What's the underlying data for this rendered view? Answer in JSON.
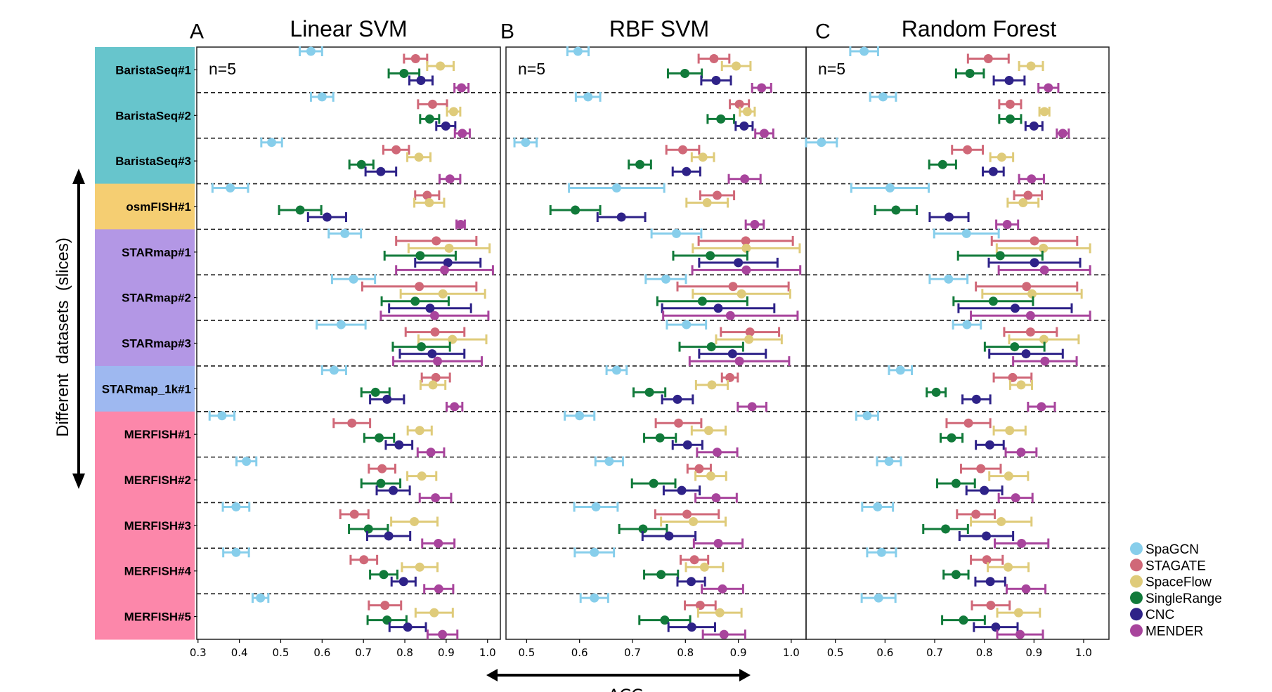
{
  "figure": {
    "ylabel": "Different  datasets  (slices)",
    "xlabel": "ACC",
    "datasets": [
      "BaristaSeq#1",
      "BaristaSeq#2",
      "BaristaSeq#3",
      "osmFISH#1",
      "STARmap#1",
      "STARmap#2",
      "STARmap#3",
      "STARmap_1k#1",
      "MERFISH#1",
      "MERFISH#2",
      "MERFISH#3",
      "MERFISH#4",
      "MERFISH#5"
    ],
    "dataset_band_colors": [
      "#67C5CC",
      "#67C5CC",
      "#67C5CC",
      "#F5CE72",
      "#B397E5",
      "#B397E5",
      "#B397E5",
      "#9EB8F0",
      "#FC87AA",
      "#FC87AA",
      "#FC87AA",
      "#FC87AA",
      "#FC87AA"
    ],
    "legend": [
      {
        "name": "SpaGCN",
        "color": "#87CEEB"
      },
      {
        "name": "STAGATE",
        "color": "#D06878"
      },
      {
        "name": "SpaceFlow",
        "color": "#DFCB7A"
      },
      {
        "name": "SingleRange",
        "color": "#117A3A"
      },
      {
        "name": "CNC",
        "color": "#2E2288"
      },
      {
        "name": "MENDER",
        "color": "#A8449C"
      }
    ],
    "legend_placement": "bottom-right"
  },
  "chart_data": [
    {
      "type": "scatter",
      "panel_letter": "A",
      "title": "Linear SVM",
      "annotation": "n=5",
      "xlim": [
        0.297,
        1.031
      ],
      "xticks": [
        "0.3",
        "0.4",
        "0.5",
        "0.6",
        "0.7",
        "0.8",
        "0.9",
        "1.0"
      ],
      "categories_ref": "figure.datasets",
      "series": [
        {
          "name": "SpaGCN",
          "values": [
            0.573,
            0.6,
            0.478,
            0.378,
            0.655,
            0.676,
            0.646,
            0.629,
            0.358,
            0.417,
            0.392,
            0.392,
            0.451
          ],
          "errors": [
            0.027,
            0.027,
            0.025,
            0.043,
            0.039,
            0.052,
            0.059,
            0.029,
            0.03,
            0.024,
            0.032,
            0.031,
            0.019
          ]
        },
        {
          "name": "STAGATE",
          "values": [
            0.826,
            0.867,
            0.779,
            0.854,
            0.876,
            0.835,
            0.873,
            0.875,
            0.672,
            0.745,
            0.678,
            0.701,
            0.752
          ],
          "errors": [
            0.028,
            0.035,
            0.031,
            0.029,
            0.097,
            0.138,
            0.071,
            0.034,
            0.044,
            0.032,
            0.034,
            0.032,
            0.039
          ]
        },
        {
          "name": "SpaceFlow",
          "values": [
            0.886,
            0.918,
            0.834,
            0.859,
            0.907,
            0.892,
            0.915,
            0.868,
            0.836,
            0.841,
            0.823,
            0.836,
            0.871
          ],
          "errors": [
            0.032,
            0.016,
            0.028,
            0.036,
            0.098,
            0.102,
            0.082,
            0.03,
            0.029,
            0.035,
            0.056,
            0.043,
            0.045
          ]
        },
        {
          "name": "SingleRange",
          "values": [
            0.798,
            0.86,
            0.695,
            0.547,
            0.837,
            0.825,
            0.84,
            0.729,
            0.738,
            0.742,
            0.712,
            0.749,
            0.757
          ],
          "errors": [
            0.037,
            0.023,
            0.029,
            0.051,
            0.086,
            0.081,
            0.069,
            0.034,
            0.036,
            0.047,
            0.047,
            0.033,
            0.047
          ]
        },
        {
          "name": "CNC",
          "values": [
            0.839,
            0.899,
            0.742,
            0.612,
            0.904,
            0.861,
            0.866,
            0.757,
            0.786,
            0.772,
            0.761,
            0.797,
            0.807
          ],
          "errors": [
            0.028,
            0.023,
            0.037,
            0.046,
            0.079,
            0.099,
            0.078,
            0.041,
            0.032,
            0.04,
            0.052,
            0.029,
            0.044
          ]
        },
        {
          "name": "MENDER",
          "values": [
            0.937,
            0.939,
            0.909,
            0.935,
            0.896,
            0.872,
            0.879,
            0.92,
            0.863,
            0.874,
            0.881,
            0.882,
            0.891
          ],
          "errors": [
            0.017,
            0.018,
            0.025,
            0.01,
            0.117,
            0.13,
            0.107,
            0.019,
            0.032,
            0.038,
            0.039,
            0.035,
            0.036
          ]
        }
      ]
    },
    {
      "type": "scatter",
      "panel_letter": "B",
      "title": "RBF SVM",
      "annotation": "n=5",
      "xlim": [
        0.461,
        1.028
      ],
      "xticks": [
        "0.5",
        "0.6",
        "0.7",
        "0.8",
        "0.9",
        "1.0"
      ],
      "series": [
        {
          "name": "SpaGCN",
          "values": [
            0.597,
            0.616,
            0.498,
            0.67,
            0.783,
            0.763,
            0.802,
            0.67,
            0.6,
            0.656,
            0.631,
            0.628,
            0.628
          ],
          "errors": [
            0.02,
            0.023,
            0.021,
            0.09,
            0.047,
            0.038,
            0.037,
            0.019,
            0.028,
            0.026,
            0.041,
            0.037,
            0.026
          ]
        },
        {
          "name": "STAGATE",
          "values": [
            0.854,
            0.902,
            0.795,
            0.86,
            0.914,
            0.89,
            0.922,
            0.884,
            0.787,
            0.826,
            0.803,
            0.817,
            0.828
          ],
          "errors": [
            0.029,
            0.018,
            0.031,
            0.032,
            0.089,
            0.105,
            0.055,
            0.015,
            0.043,
            0.022,
            0.06,
            0.026,
            0.029
          ]
        },
        {
          "name": "SpaceFlow",
          "values": [
            0.896,
            0.917,
            0.833,
            0.841,
            0.915,
            0.906,
            0.92,
            0.85,
            0.844,
            0.848,
            0.815,
            0.836,
            0.865
          ],
          "errors": [
            0.027,
            0.014,
            0.021,
            0.039,
            0.101,
            0.092,
            0.062,
            0.03,
            0.032,
            0.029,
            0.061,
            0.035,
            0.041
          ]
        },
        {
          "name": "SingleRange",
          "values": [
            0.799,
            0.867,
            0.714,
            0.592,
            0.847,
            0.832,
            0.849,
            0.732,
            0.752,
            0.74,
            0.72,
            0.754,
            0.761
          ],
          "errors": [
            0.032,
            0.025,
            0.021,
            0.047,
            0.07,
            0.085,
            0.06,
            0.03,
            0.03,
            0.041,
            0.045,
            0.032,
            0.048
          ]
        },
        {
          "name": "CNC",
          "values": [
            0.858,
            0.911,
            0.802,
            0.679,
            0.9,
            0.862,
            0.889,
            0.785,
            0.804,
            0.793,
            0.769,
            0.811,
            0.812
          ],
          "errors": [
            0.028,
            0.016,
            0.026,
            0.045,
            0.074,
            0.106,
            0.063,
            0.029,
            0.028,
            0.034,
            0.05,
            0.026,
            0.044
          ]
        },
        {
          "name": "MENDER",
          "values": [
            0.944,
            0.949,
            0.912,
            0.931,
            0.915,
            0.885,
            0.902,
            0.926,
            0.86,
            0.858,
            0.862,
            0.87,
            0.873
          ],
          "errors": [
            0.018,
            0.017,
            0.03,
            0.017,
            0.102,
            0.127,
            0.094,
            0.027,
            0.038,
            0.039,
            0.046,
            0.039,
            0.04
          ]
        }
      ]
    },
    {
      "type": "scatter",
      "panel_letter": "C",
      "title": "Random Forest",
      "annotation": "n=5",
      "xlim": [
        0.441,
        1.051
      ],
      "xticks": [
        "0.5",
        "0.6",
        "0.7",
        "0.8",
        "0.9",
        "1.0"
      ],
      "series": [
        {
          "name": "SpaGCN",
          "values": [
            0.558,
            0.596,
            0.472,
            0.61,
            0.764,
            0.728,
            0.765,
            0.631,
            0.564,
            0.608,
            0.585,
            0.593,
            0.587
          ],
          "errors": [
            0.028,
            0.026,
            0.031,
            0.078,
            0.065,
            0.038,
            0.028,
            0.023,
            0.022,
            0.024,
            0.031,
            0.029,
            0.034
          ]
        },
        {
          "name": "STAGATE",
          "values": [
            0.808,
            0.852,
            0.766,
            0.888,
            0.901,
            0.885,
            0.893,
            0.857,
            0.768,
            0.793,
            0.783,
            0.805,
            0.813
          ],
          "errors": [
            0.041,
            0.022,
            0.031,
            0.028,
            0.086,
            0.102,
            0.053,
            0.038,
            0.044,
            0.04,
            0.038,
            0.032,
            0.038
          ]
        },
        {
          "name": "SpaceFlow",
          "values": [
            0.894,
            0.921,
            0.835,
            0.878,
            0.919,
            0.896,
            0.92,
            0.874,
            0.851,
            0.849,
            0.834,
            0.848,
            0.869
          ],
          "errors": [
            0.024,
            0.01,
            0.023,
            0.031,
            0.094,
            0.1,
            0.07,
            0.022,
            0.032,
            0.039,
            0.061,
            0.041,
            0.043
          ]
        },
        {
          "name": "SingleRange",
          "values": [
            0.771,
            0.852,
            0.716,
            0.622,
            0.832,
            0.818,
            0.861,
            0.703,
            0.734,
            0.743,
            0.722,
            0.743,
            0.758
          ],
          "errors": [
            0.028,
            0.022,
            0.027,
            0.042,
            0.085,
            0.08,
            0.06,
            0.019,
            0.022,
            0.038,
            0.045,
            0.025,
            0.043
          ]
        },
        {
          "name": "CNC",
          "values": [
            0.85,
            0.9,
            0.818,
            0.729,
            0.901,
            0.862,
            0.884,
            0.784,
            0.811,
            0.8,
            0.804,
            0.812,
            0.823
          ],
          "errors": [
            0.031,
            0.017,
            0.021,
            0.039,
            0.092,
            0.114,
            0.074,
            0.028,
            0.028,
            0.036,
            0.054,
            0.03,
            0.044
          ]
        },
        {
          "name": "MENDER",
          "values": [
            0.929,
            0.958,
            0.895,
            0.846,
            0.921,
            0.893,
            0.922,
            0.915,
            0.874,
            0.863,
            0.875,
            0.884,
            0.872
          ],
          "errors": [
            0.02,
            0.012,
            0.025,
            0.022,
            0.092,
            0.12,
            0.064,
            0.027,
            0.031,
            0.034,
            0.054,
            0.039,
            0.046
          ]
        }
      ]
    }
  ]
}
